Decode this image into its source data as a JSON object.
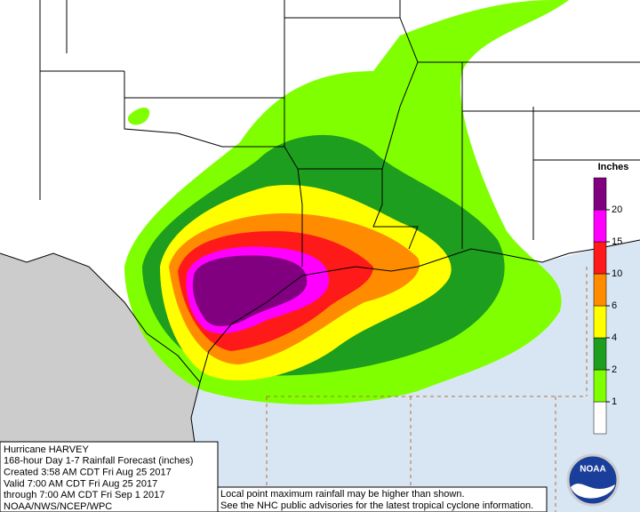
{
  "legend": {
    "title": "Inches",
    "ticks": [
      1,
      2,
      4,
      6,
      10,
      15,
      20
    ],
    "colors": [
      "#ffffff",
      "#7fff00",
      "#1e9e1e",
      "#ffff00",
      "#ff8c00",
      "#ff1a1a",
      "#ff00ff",
      "#800080"
    ]
  },
  "info": {
    "lines": [
      "Hurricane HARVEY",
      "168-hour Day 1-7 Rainfall Forecast (inches)",
      "Created 3:58 AM CDT Fri Aug 25 2017",
      "Valid 7:00 AM CDT Fri Aug 25 2017",
      "through 7:00 AM CDT Fri Sep 1 2017",
      "NOAA/NWS/NCEP/WPC"
    ]
  },
  "note": {
    "lines": [
      "Local point maximum rainfall may be higher than shown.",
      "See the NHC public advisories for the latest tropical cyclone information."
    ]
  },
  "logo": {
    "label": "NOAA"
  }
}
